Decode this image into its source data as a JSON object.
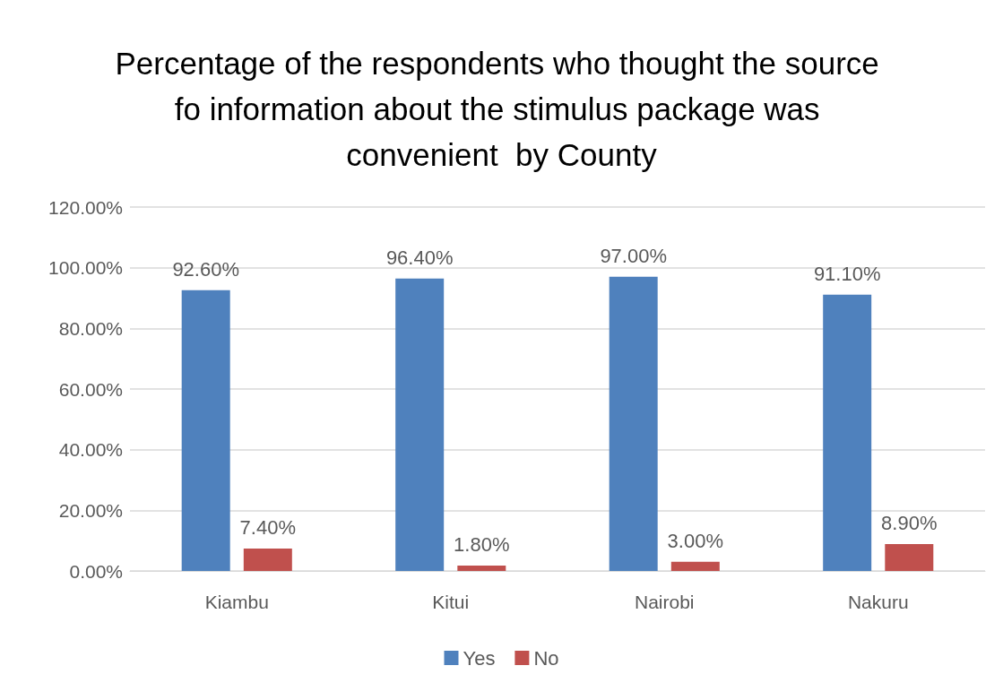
{
  "chart_data": {
    "type": "bar",
    "title": "Percentage of the respondents who thought the source fo information about the stimulus package was convenient  by County",
    "categories": [
      "Kiambu",
      "Kitui",
      "Nairobi",
      "Nakuru"
    ],
    "series": [
      {
        "name": "Yes",
        "color": "#4f81bd",
        "values": [
          92.6,
          96.4,
          97.0,
          91.1
        ],
        "value_labels": [
          "92.60%",
          "96.40%",
          "97.00%",
          "91.10%"
        ]
      },
      {
        "name": "No",
        "color": "#c0504d",
        "values": [
          7.4,
          1.8,
          3.0,
          8.9
        ],
        "value_labels": [
          "7.40%",
          "1.80%",
          "3.00%",
          "8.90%"
        ]
      }
    ],
    "ylim": [
      0,
      120
    ],
    "yticks": [
      {
        "value": 0,
        "label": "0.00%"
      },
      {
        "value": 20,
        "label": "20.00%"
      },
      {
        "value": 40,
        "label": "40.00%"
      },
      {
        "value": 60,
        "label": "60.00%"
      },
      {
        "value": 80,
        "label": "80.00%"
      },
      {
        "value": 100,
        "label": "100.00%"
      },
      {
        "value": 120,
        "label": "120.00%"
      }
    ],
    "grid": "y",
    "legend": "bottom"
  }
}
